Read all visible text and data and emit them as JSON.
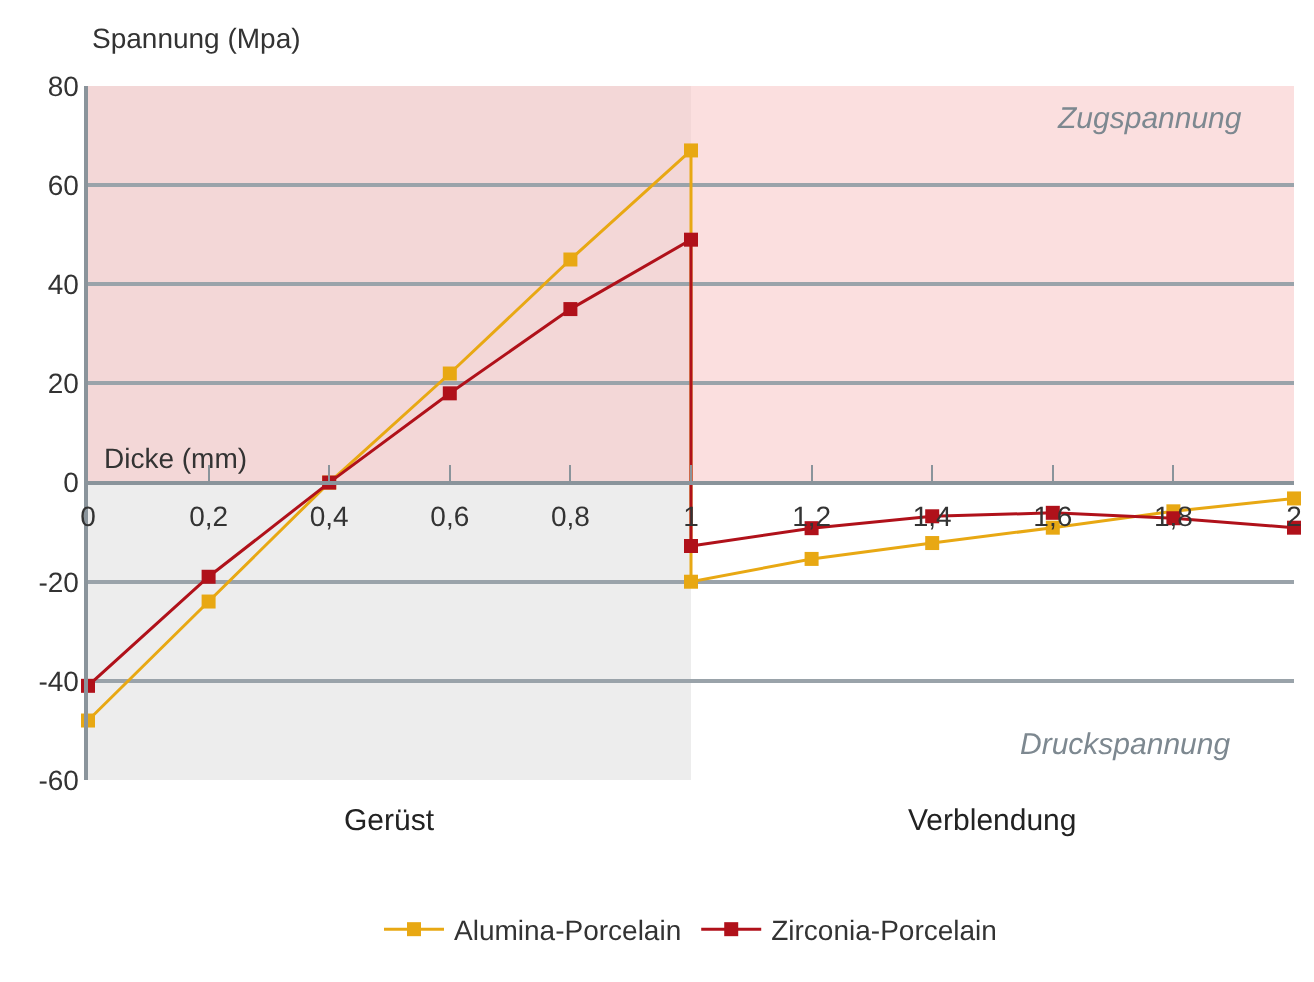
{
  "chart_data": {
    "type": "line",
    "ylabel": "Spannung (Mpa)",
    "xlabel": "Dicke (mm)",
    "xlim": [
      0,
      2
    ],
    "xticks": [
      0,
      {
        "value": 0.2,
        "label": "0,2"
      },
      {
        "value": 0.4,
        "label": "0,4"
      },
      {
        "value": 0.6,
        "label": "0,6"
      },
      {
        "value": 0.8,
        "label": "0,8"
      },
      1,
      {
        "value": 1.2,
        "label": "1,2"
      },
      {
        "value": 1.4,
        "label": "1,4"
      },
      {
        "value": 1.6,
        "label": "1,6"
      },
      {
        "value": 1.8,
        "label": "1,8"
      },
      2
    ],
    "ylim": [
      -60,
      80
    ],
    "yticks": [
      -60,
      -40,
      -20,
      0,
      20,
      40,
      60,
      80
    ],
    "series": [
      {
        "name": "Alumina-Porcelain",
        "color": "#e8a813",
        "x": [
          0,
          0.2,
          0.4,
          0.6,
          0.8,
          1,
          1,
          1.2,
          1.4,
          1.6,
          1.8,
          2
        ],
        "values": [
          -48,
          -24,
          0,
          22,
          45,
          67,
          -20,
          -15.4,
          -12.2,
          -9.1,
          -5.8,
          -3.2
        ]
      },
      {
        "name": "Zirconia-Porcelain",
        "color": "#b0111a",
        "x": [
          0,
          0.2,
          0.4,
          0.6,
          0.8,
          1,
          1,
          1.2,
          1.4,
          1.6,
          1.8,
          2
        ],
        "values": [
          -41,
          -19,
          0,
          18,
          35,
          49,
          -12.8,
          -9.2,
          -6.8,
          -6.1,
          -7.2,
          -9.1
        ]
      }
    ],
    "bands": [
      {
        "axis": "x",
        "from": 0,
        "to": 1,
        "label": "Gerüst",
        "color": "#ededed"
      },
      {
        "axis": "y",
        "from": 0,
        "to": 80,
        "label": "Zugspannung",
        "color": "#f7c4c4"
      }
    ],
    "annotations": [
      "Verblendung",
      "Druckspannung"
    ],
    "grid": "y",
    "legend": "bottom",
    "marker": "square",
    "line_style": "solid"
  }
}
